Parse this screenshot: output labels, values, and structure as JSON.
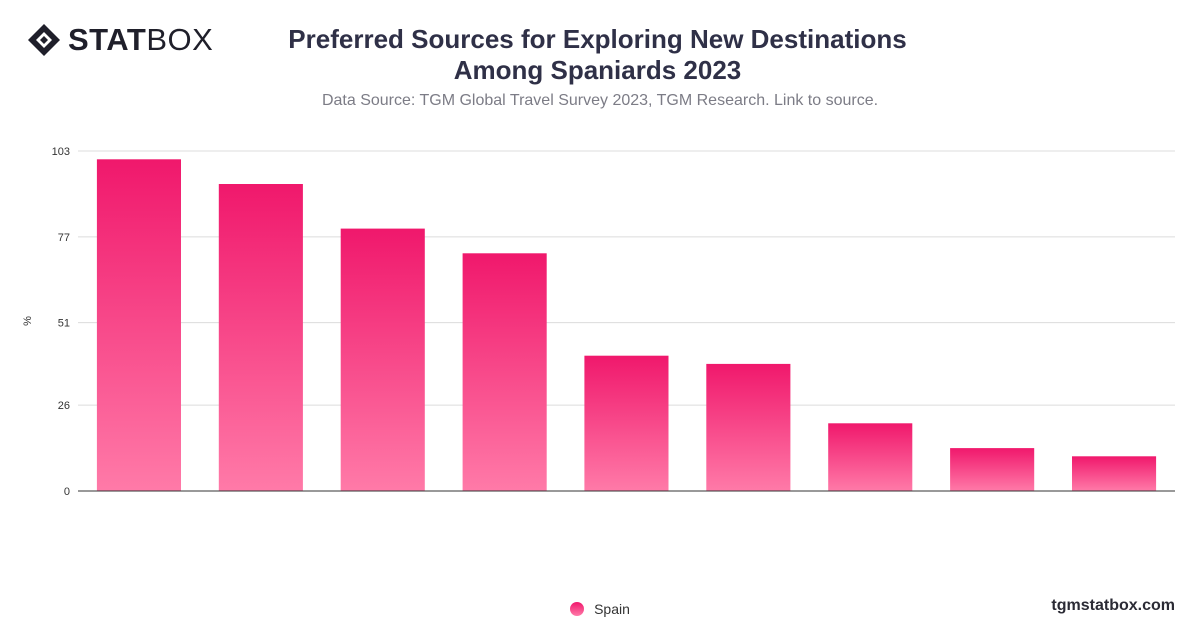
{
  "brand": {
    "bold": "STAT",
    "light": "BOX"
  },
  "chart_data": {
    "type": "bar",
    "title": "Preferred Sources for Exploring New Destinations Among Spaniards 2023",
    "subtitle": "Data Source: TGM Global Travel Survey 2023, TGM Research. Link to source.",
    "ylabel": "%",
    "xlabel": "",
    "ylim": [
      0,
      103
    ],
    "yticks": [
      0,
      26,
      51,
      77,
      103
    ],
    "grid": true,
    "legend_position": "bottom",
    "series": [
      {
        "name": "Spain",
        "values": [
          100.5,
          93,
          79.5,
          72,
          41,
          38.5,
          20.5,
          13,
          10.5
        ]
      }
    ],
    "colors": {
      "bar_top": "#f0186c",
      "bar_bottom": "#ff7aa8",
      "grid": "#dcdcdc",
      "axis": "#333333"
    }
  },
  "footer": "tgmstatbox.com"
}
